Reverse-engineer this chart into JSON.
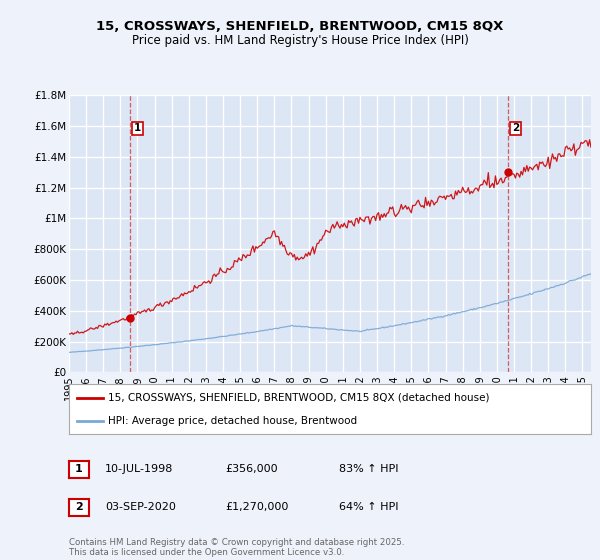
{
  "title1": "15, CROSSWAYS, SHENFIELD, BRENTWOOD, CM15 8QX",
  "title2": "Price paid vs. HM Land Registry's House Price Index (HPI)",
  "ylim": [
    0,
    1800000
  ],
  "yticks": [
    0,
    200000,
    400000,
    600000,
    800000,
    1000000,
    1200000,
    1400000,
    1600000,
    1800000
  ],
  "ytick_labels": [
    "£0",
    "£200K",
    "£400K",
    "£600K",
    "£800K",
    "£1M",
    "£1.2M",
    "£1.4M",
    "£1.6M",
    "£1.8M"
  ],
  "background_color": "#eef2fa",
  "plot_bg": "#dce6f5",
  "grid_color": "#ffffff",
  "red_line_color": "#cc0000",
  "blue_line_color": "#7aa8d4",
  "legend_line1": "15, CROSSWAYS, SHENFIELD, BRENTWOOD, CM15 8QX (detached house)",
  "legend_line2": "HPI: Average price, detached house, Brentwood",
  "annot1_date": "10-JUL-1998",
  "annot1_price": "£356,000",
  "annot1_hpi": "83% ↑ HPI",
  "annot2_date": "03-SEP-2020",
  "annot2_price": "£1,270,000",
  "annot2_hpi": "64% ↑ HPI",
  "footer": "Contains HM Land Registry data © Crown copyright and database right 2025.\nThis data is licensed under the Open Government Licence v3.0.",
  "xstart_year": 1995,
  "xend_year": 2025
}
